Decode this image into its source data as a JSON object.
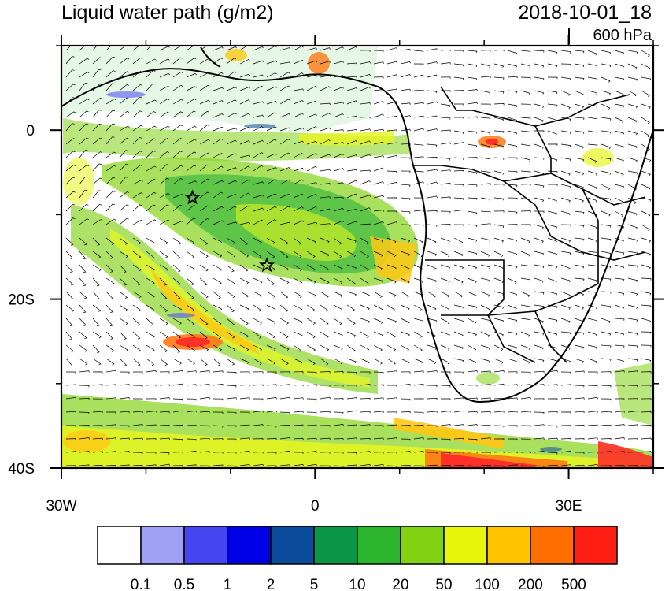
{
  "title": "Liquid water path (g/m2)",
  "datetime": "2018-10-01_18",
  "level": "600 hPa",
  "axes": {
    "x_ticks": [
      {
        "value": -30,
        "label": "30W"
      },
      {
        "value": 0,
        "label": "0"
      },
      {
        "value": 30,
        "label": "30E"
      }
    ],
    "y_ticks": [
      {
        "value": 0,
        "label": "0"
      },
      {
        "value": -20,
        "label": "20S"
      },
      {
        "value": -40,
        "label": "40S"
      }
    ],
    "lon_range": [
      -30,
      40
    ],
    "lat_range": [
      -40,
      10
    ]
  },
  "colorbar": {
    "colors": [
      "#ffffff",
      "#a0a0f5",
      "#4646f0",
      "#0000e6",
      "#0a4b9b",
      "#0a9646",
      "#2db42d",
      "#82d214",
      "#e6f50a",
      "#ffc300",
      "#ff6e00",
      "#ff1e14"
    ],
    "labels": [
      "0.1",
      "0.5",
      "1",
      "2",
      "5",
      "10",
      "20",
      "50",
      "100",
      "200",
      "500"
    ]
  },
  "markers": [
    {
      "name": "star",
      "lon": -14.5,
      "lat": -8
    },
    {
      "name": "star",
      "lon": -5.7,
      "lat": -16
    }
  ],
  "cloud_fields": {
    "midlat_band": {
      "level_colors": [
        "#82d214",
        "#e6f50a",
        "#ffc300",
        "#ff6e00",
        "#ff1e14"
      ]
    },
    "spiral_band": {
      "level_colors": [
        "#2db42d",
        "#82d214",
        "#e6f50a",
        "#ffc300"
      ]
    }
  }
}
